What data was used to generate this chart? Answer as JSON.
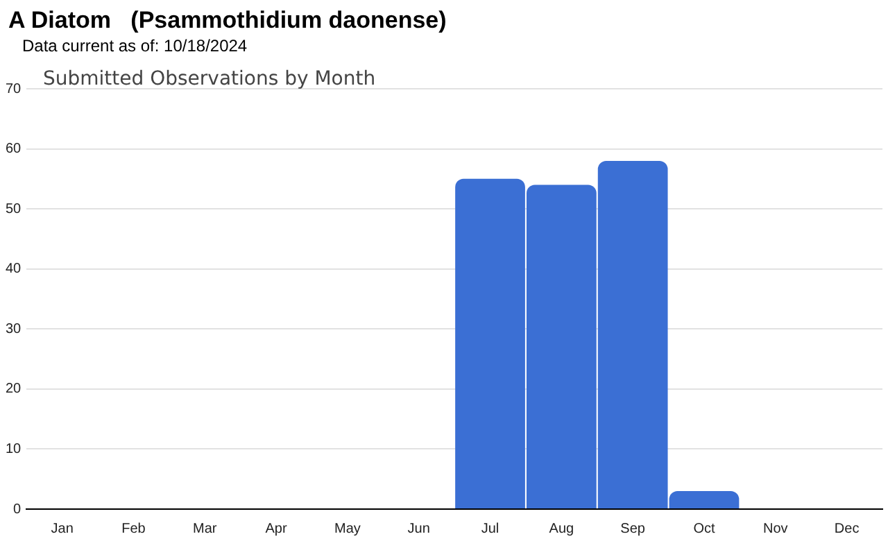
{
  "chart_data": {
    "type": "bar",
    "title": "A Diatom   (Psammothidium daonense)",
    "subtitle": "Data current as of: 10/18/2024",
    "annotations": [
      "Submitted Observations by Month"
    ],
    "categories": [
      "Jan",
      "Feb",
      "Mar",
      "Apr",
      "May",
      "Jun",
      "Jul",
      "Aug",
      "Sep",
      "Oct",
      "Nov",
      "Dec"
    ],
    "values": [
      0,
      0,
      0,
      0,
      0,
      0,
      55,
      54,
      58,
      3,
      0,
      0
    ],
    "color": "#3b6fd4",
    "ylim": [
      0,
      70
    ],
    "yticks": [
      0,
      10,
      20,
      30,
      40,
      50,
      60,
      70
    ],
    "grid": "y"
  }
}
